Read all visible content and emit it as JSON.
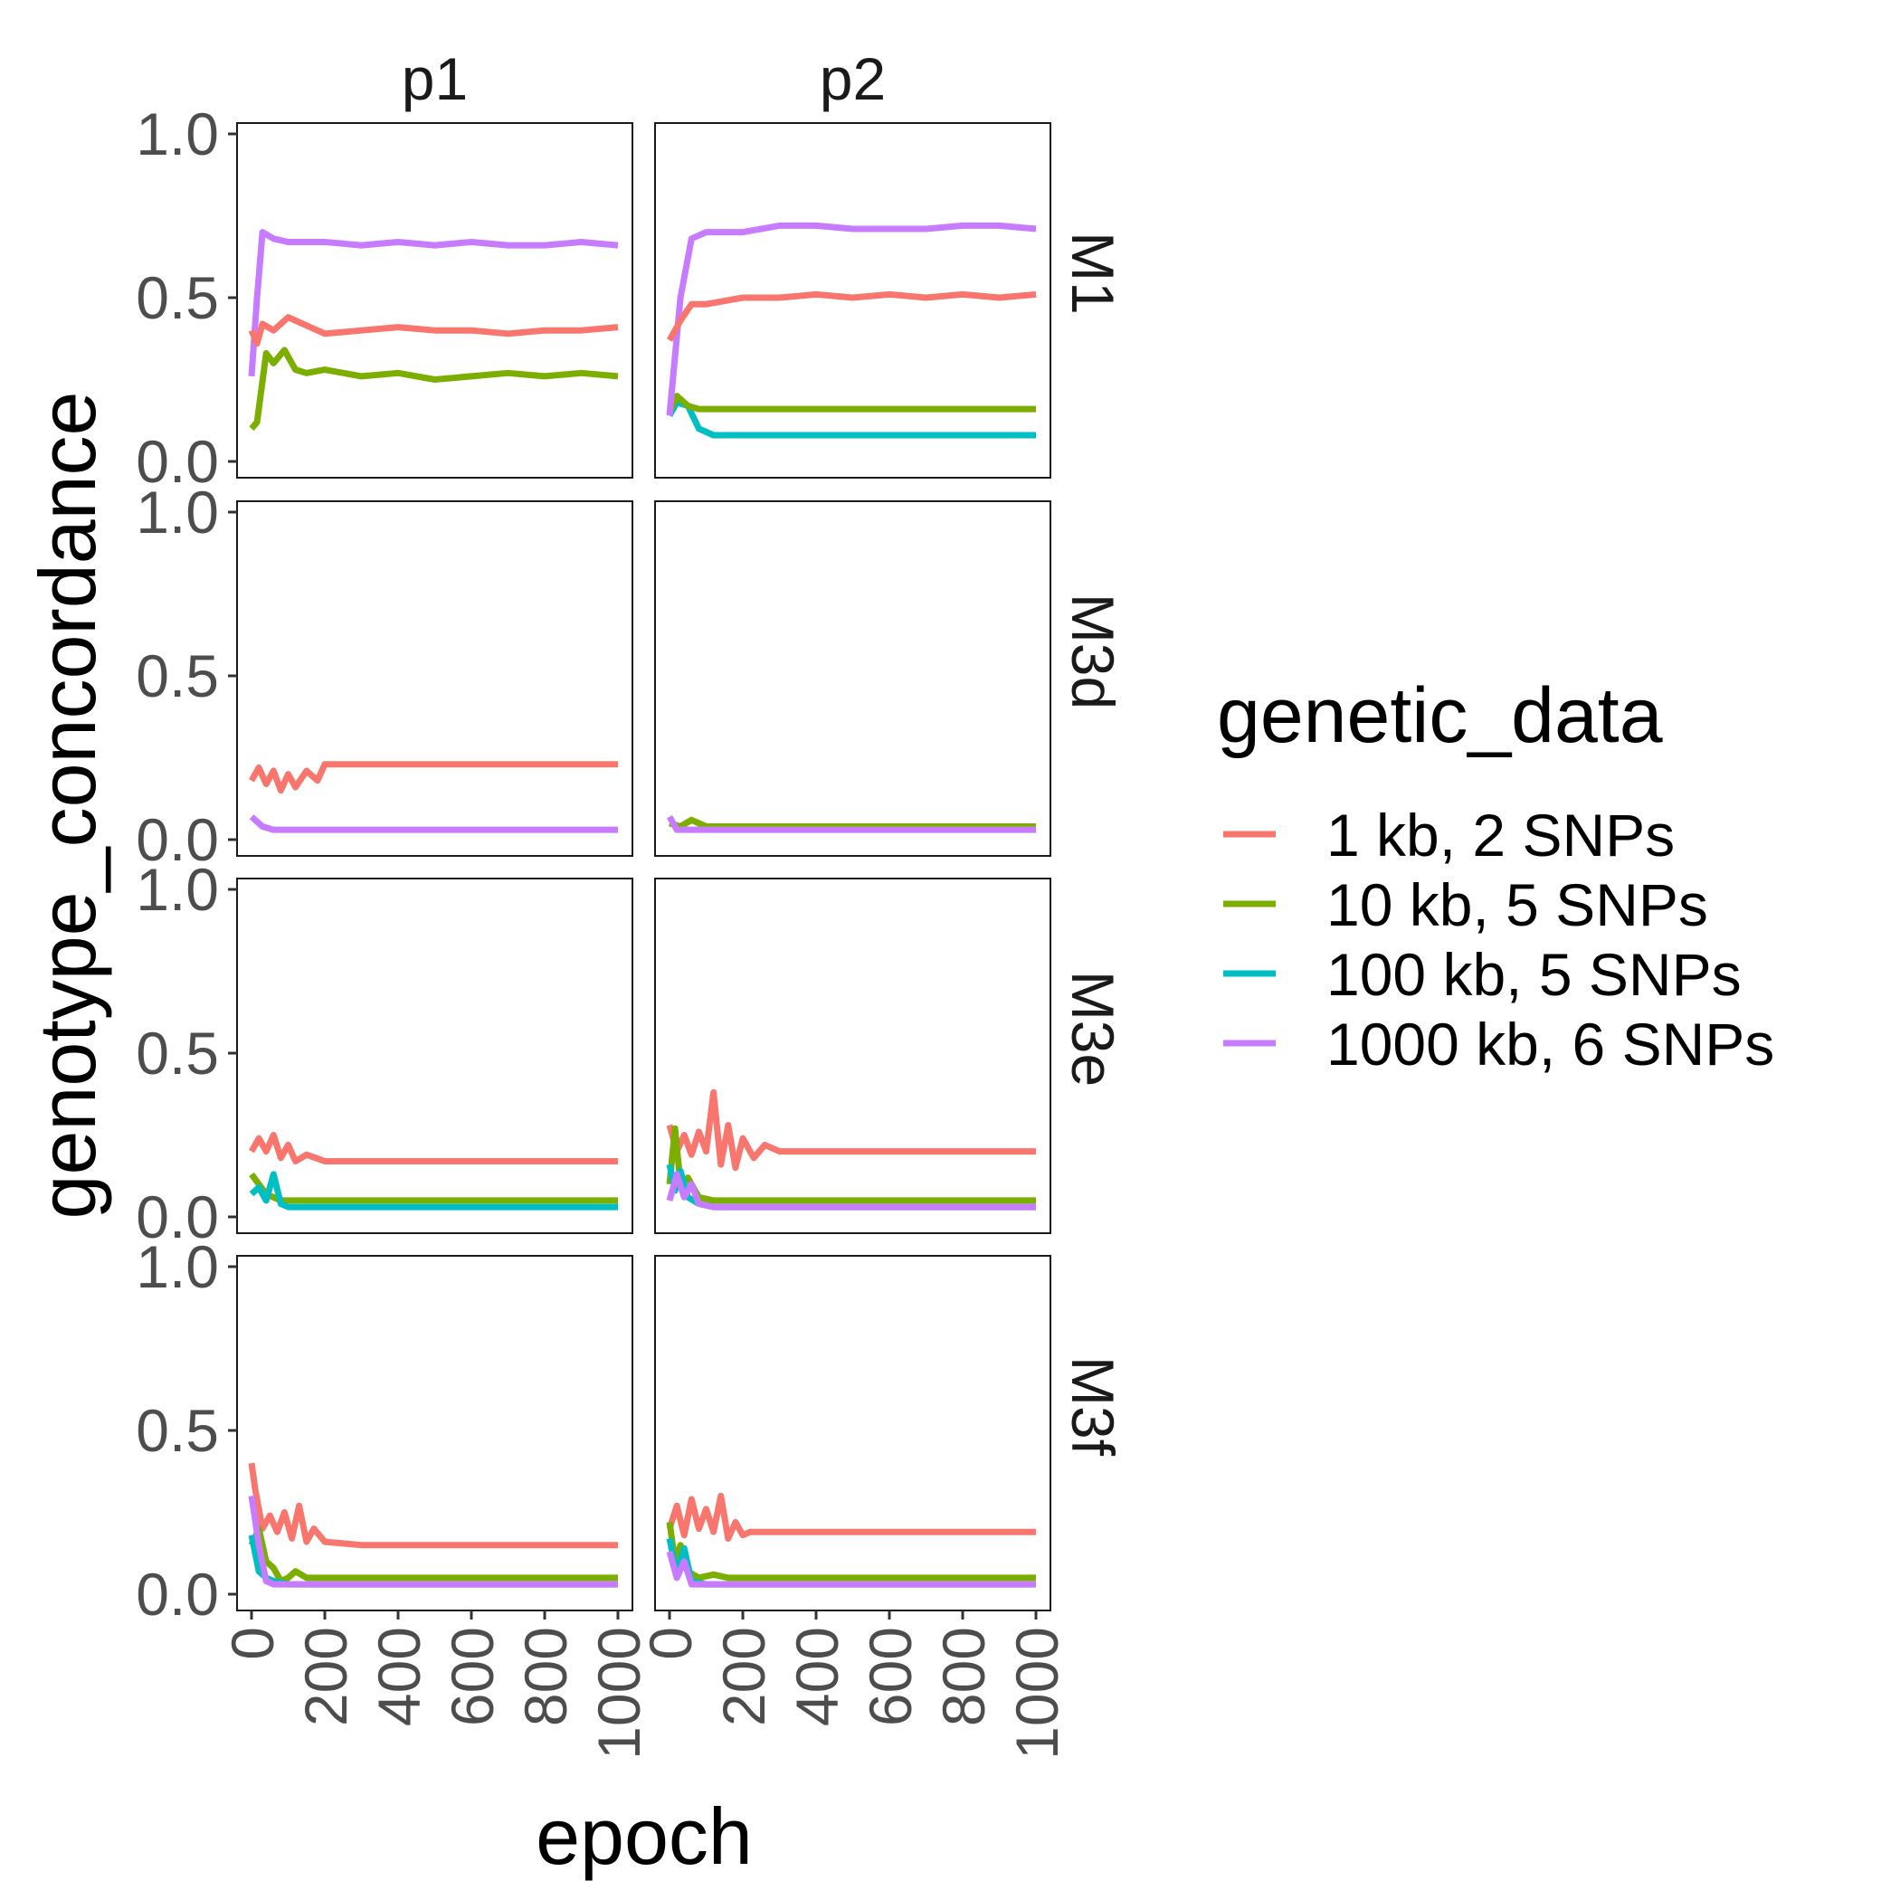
{
  "chart_data": {
    "type": "line",
    "facet_cols": [
      "p1",
      "p2"
    ],
    "facet_rows": [
      "M1",
      "M3d",
      "M3e",
      "M3f"
    ],
    "xlabel": "epoch",
    "ylabel": "genotype_concordance",
    "xlim": [
      0,
      1000
    ],
    "ylim": [
      0,
      1
    ],
    "x_ticks": [
      "0",
      "200",
      "400",
      "600",
      "800",
      "1000"
    ],
    "y_ticks": [
      "0.0",
      "0.5",
      "1.0"
    ],
    "grid": false,
    "legend": {
      "title": "genetic_data",
      "placement": "right",
      "entries": [
        "1 kb, 2 SNPs",
        "10 kb, 5 SNPs",
        "100 kb, 5 SNPs",
        "1000 kb, 6 SNPs"
      ]
    },
    "colors": {
      "1 kb, 2 SNPs": "#F8766D",
      "10 kb, 5 SNPs": "#7CAE00",
      "100 kb, 5 SNPs": "#00BFC4",
      "1000 kb, 6 SNPs": "#C77CFF"
    },
    "panels": [
      {
        "col": "p1",
        "row": "M1",
        "series": [
          {
            "name": "10 kb, 5 SNPs",
            "x": [
              0,
              15,
              40,
              60,
              90,
              120,
              150,
              200,
              300,
              400,
              500,
              600,
              700,
              800,
              900,
              1000
            ],
            "y": [
              0.1,
              0.12,
              0.33,
              0.3,
              0.34,
              0.28,
              0.27,
              0.28,
              0.26,
              0.27,
              0.25,
              0.26,
              0.27,
              0.26,
              0.27,
              0.26
            ]
          },
          {
            "name": "1000 kb, 6 SNPs",
            "x": [
              0,
              15,
              30,
              60,
              100,
              200,
              300,
              400,
              500,
              600,
              700,
              800,
              900,
              1000
            ],
            "y": [
              0.26,
              0.5,
              0.7,
              0.68,
              0.67,
              0.67,
              0.66,
              0.67,
              0.66,
              0.67,
              0.66,
              0.66,
              0.67,
              0.66
            ]
          },
          {
            "name": "1 kb, 2 SNPs",
            "x": [
              0,
              15,
              30,
              60,
              100,
              200,
              300,
              400,
              500,
              600,
              700,
              800,
              900,
              1000
            ],
            "y": [
              0.4,
              0.36,
              0.42,
              0.4,
              0.44,
              0.39,
              0.4,
              0.41,
              0.4,
              0.4,
              0.39,
              0.4,
              0.4,
              0.41
            ]
          }
        ]
      },
      {
        "col": "p2",
        "row": "M1",
        "series": [
          {
            "name": "100 kb, 5 SNPs",
            "x": [
              0,
              20,
              50,
              80,
              120,
              200,
              300,
              400,
              500,
              600,
              700,
              800,
              900,
              1000
            ],
            "y": [
              0.14,
              0.18,
              0.17,
              0.1,
              0.08,
              0.08,
              0.08,
              0.08,
              0.08,
              0.08,
              0.08,
              0.08,
              0.08,
              0.08
            ]
          },
          {
            "name": "10 kb, 5 SNPs",
            "x": [
              0,
              20,
              50,
              80,
              120,
              200,
              300,
              400,
              500,
              600,
              700,
              800,
              900,
              1000
            ],
            "y": [
              0.15,
              0.2,
              0.17,
              0.16,
              0.16,
              0.16,
              0.16,
              0.16,
              0.16,
              0.16,
              0.16,
              0.16,
              0.16,
              0.16
            ]
          },
          {
            "name": "1000 kb, 6 SNPs",
            "x": [
              0,
              30,
              60,
              100,
              200,
              300,
              400,
              500,
              600,
              700,
              800,
              900,
              1000
            ],
            "y": [
              0.14,
              0.5,
              0.68,
              0.7,
              0.7,
              0.72,
              0.72,
              0.71,
              0.71,
              0.71,
              0.72,
              0.72,
              0.71
            ]
          },
          {
            "name": "1 kb, 2 SNPs",
            "x": [
              0,
              30,
              60,
              100,
              200,
              300,
              400,
              500,
              600,
              700,
              800,
              900,
              1000
            ],
            "y": [
              0.37,
              0.43,
              0.48,
              0.48,
              0.5,
              0.5,
              0.51,
              0.5,
              0.51,
              0.5,
              0.51,
              0.5,
              0.51
            ]
          }
        ]
      },
      {
        "col": "p1",
        "row": "M3d",
        "series": [
          {
            "name": "1 kb, 2 SNPs",
            "x": [
              0,
              20,
              40,
              60,
              80,
              100,
              120,
              150,
              180,
              200,
              300,
              400,
              500,
              600,
              700,
              800,
              900,
              1000
            ],
            "y": [
              0.18,
              0.22,
              0.17,
              0.21,
              0.15,
              0.2,
              0.16,
              0.21,
              0.18,
              0.23,
              0.23,
              0.23,
              0.23,
              0.23,
              0.23,
              0.23,
              0.23,
              0.23
            ]
          },
          {
            "name": "1000 kb, 6 SNPs",
            "x": [
              0,
              30,
              60,
              100,
              200,
              400,
              600,
              800,
              1000
            ],
            "y": [
              0.07,
              0.04,
              0.03,
              0.03,
              0.03,
              0.03,
              0.03,
              0.03,
              0.03
            ]
          }
        ]
      },
      {
        "col": "p2",
        "row": "M3d",
        "series": [
          {
            "name": "10 kb, 5 SNPs",
            "x": [
              0,
              30,
              60,
              100,
              200,
              400,
              600,
              800,
              1000
            ],
            "y": [
              0.05,
              0.04,
              0.06,
              0.04,
              0.04,
              0.04,
              0.04,
              0.04,
              0.04
            ]
          },
          {
            "name": "1000 kb, 6 SNPs",
            "x": [
              0,
              20,
              40,
              100,
              200,
              400,
              600,
              800,
              1000
            ],
            "y": [
              0.07,
              0.03,
              0.03,
              0.03,
              0.03,
              0.03,
              0.03,
              0.03,
              0.03
            ]
          }
        ]
      },
      {
        "col": "p1",
        "row": "M3e",
        "series": [
          {
            "name": "1 kb, 2 SNPs",
            "x": [
              0,
              20,
              40,
              60,
              80,
              100,
              120,
              150,
              200,
              250,
              300,
              400,
              600,
              800,
              1000
            ],
            "y": [
              0.2,
              0.24,
              0.2,
              0.25,
              0.18,
              0.22,
              0.17,
              0.19,
              0.17,
              0.17,
              0.17,
              0.17,
              0.17,
              0.17,
              0.17
            ]
          },
          {
            "name": "10 kb, 5 SNPs",
            "x": [
              0,
              20,
              40,
              60,
              80,
              100,
              150,
              200,
              400,
              600,
              800,
              1000
            ],
            "y": [
              0.13,
              0.1,
              0.07,
              0.06,
              0.05,
              0.05,
              0.05,
              0.05,
              0.05,
              0.05,
              0.05,
              0.05
            ]
          },
          {
            "name": "100 kb, 5 SNPs",
            "x": [
              0,
              20,
              40,
              60,
              80,
              100,
              150,
              200,
              400,
              600,
              800,
              1000
            ],
            "y": [
              0.07,
              0.09,
              0.05,
              0.13,
              0.04,
              0.03,
              0.03,
              0.03,
              0.03,
              0.03,
              0.03,
              0.03
            ]
          }
        ]
      },
      {
        "col": "p2",
        "row": "M3e",
        "series": [
          {
            "name": "1 kb, 2 SNPs",
            "x": [
              0,
              20,
              40,
              60,
              80,
              100,
              120,
              140,
              160,
              180,
              200,
              230,
              260,
              300,
              400,
              600,
              800,
              1000
            ],
            "y": [
              0.28,
              0.2,
              0.25,
              0.19,
              0.26,
              0.2,
              0.38,
              0.16,
              0.28,
              0.15,
              0.24,
              0.18,
              0.22,
              0.2,
              0.2,
              0.2,
              0.2,
              0.2
            ]
          },
          {
            "name": "10 kb, 5 SNPs",
            "x": [
              0,
              15,
              30,
              50,
              80,
              120,
              200,
              400,
              600,
              800,
              1000
            ],
            "y": [
              0.1,
              0.27,
              0.1,
              0.12,
              0.06,
              0.05,
              0.05,
              0.05,
              0.05,
              0.05,
              0.05
            ]
          },
          {
            "name": "100 kb, 5 SNPs",
            "x": [
              0,
              15,
              30,
              50,
              80,
              120,
              200,
              400,
              600,
              800,
              1000
            ],
            "y": [
              0.16,
              0.08,
              0.14,
              0.06,
              0.04,
              0.03,
              0.03,
              0.03,
              0.03,
              0.03,
              0.03
            ]
          },
          {
            "name": "1000 kb, 6 SNPs",
            "x": [
              0,
              20,
              40,
              60,
              80,
              120,
              200,
              400,
              600,
              800,
              1000
            ],
            "y": [
              0.05,
              0.13,
              0.06,
              0.1,
              0.04,
              0.03,
              0.03,
              0.03,
              0.03,
              0.03,
              0.03
            ]
          }
        ]
      },
      {
        "col": "p1",
        "row": "M3f",
        "series": [
          {
            "name": "1 kb, 2 SNPs",
            "x": [
              0,
              10,
              30,
              50,
              70,
              90,
              110,
              130,
              150,
              170,
              200,
              300,
              400,
              600,
              800,
              1000
            ],
            "y": [
              0.4,
              0.32,
              0.2,
              0.24,
              0.19,
              0.25,
              0.17,
              0.27,
              0.16,
              0.2,
              0.16,
              0.15,
              0.15,
              0.15,
              0.15,
              0.15
            ]
          },
          {
            "name": "10 kb, 5 SNPs",
            "x": [
              0,
              20,
              40,
              60,
              80,
              100,
              120,
              150,
              200,
              400,
              600,
              800,
              1000
            ],
            "y": [
              0.15,
              0.2,
              0.1,
              0.08,
              0.04,
              0.05,
              0.07,
              0.05,
              0.05,
              0.05,
              0.05,
              0.05,
              0.05
            ]
          },
          {
            "name": "100 kb, 5 SNPs",
            "x": [
              0,
              20,
              40,
              60,
              100,
              200,
              400,
              600,
              800,
              1000
            ],
            "y": [
              0.18,
              0.07,
              0.05,
              0.04,
              0.03,
              0.03,
              0.03,
              0.03,
              0.03,
              0.03
            ]
          },
          {
            "name": "1000 kb, 6 SNPs",
            "x": [
              0,
              20,
              40,
              60,
              100,
              200,
              400,
              600,
              800,
              1000
            ],
            "y": [
              0.3,
              0.15,
              0.04,
              0.03,
              0.03,
              0.03,
              0.03,
              0.03,
              0.03,
              0.03
            ]
          }
        ]
      },
      {
        "col": "p2",
        "row": "M3f",
        "series": [
          {
            "name": "1 kb, 2 SNPs",
            "x": [
              0,
              20,
              40,
              60,
              80,
              100,
              120,
              140,
              160,
              180,
              200,
              220,
              300,
              400,
              600,
              800,
              1000
            ],
            "y": [
              0.2,
              0.27,
              0.18,
              0.29,
              0.2,
              0.26,
              0.19,
              0.3,
              0.17,
              0.22,
              0.18,
              0.19,
              0.19,
              0.19,
              0.19,
              0.19,
              0.19
            ]
          },
          {
            "name": "10 kb, 5 SNPs",
            "x": [
              0,
              15,
              30,
              50,
              80,
              120,
              160,
              200,
              400,
              600,
              800,
              1000
            ],
            "y": [
              0.22,
              0.1,
              0.15,
              0.07,
              0.05,
              0.06,
              0.05,
              0.05,
              0.05,
              0.05,
              0.05,
              0.05
            ]
          },
          {
            "name": "100 kb, 5 SNPs",
            "x": [
              0,
              20,
              40,
              60,
              100,
              200,
              400,
              600,
              800,
              1000
            ],
            "y": [
              0.17,
              0.06,
              0.14,
              0.04,
              0.03,
              0.03,
              0.03,
              0.03,
              0.03,
              0.03
            ]
          },
          {
            "name": "1000 kb, 6 SNPs",
            "x": [
              0,
              20,
              40,
              60,
              100,
              200,
              400,
              600,
              800,
              1000
            ],
            "y": [
              0.13,
              0.05,
              0.1,
              0.03,
              0.03,
              0.03,
              0.03,
              0.03,
              0.03,
              0.03
            ]
          }
        ]
      }
    ]
  }
}
